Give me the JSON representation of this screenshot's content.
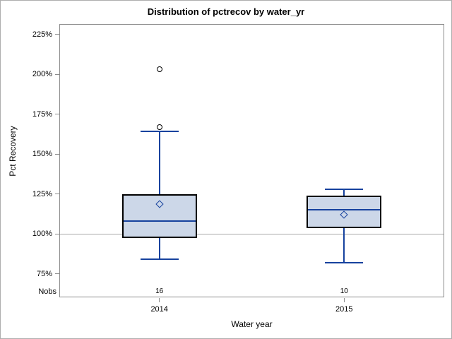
{
  "chart_data": {
    "type": "boxplot",
    "title": "Distribution of pctrecov by water_yr",
    "xlabel": "Water year",
    "ylabel": "Pct Recovery",
    "nobs_label": "Nobs",
    "y_ticks": [
      {
        "value": 225,
        "label": "225%"
      },
      {
        "value": 200,
        "label": "200%"
      },
      {
        "value": 175,
        "label": "175%"
      },
      {
        "value": 150,
        "label": "150%"
      },
      {
        "value": 125,
        "label": "125%"
      },
      {
        "value": 100,
        "label": "100%"
      },
      {
        "value": 75,
        "label": "75%"
      }
    ],
    "ylim": [
      60,
      231
    ],
    "reference_line": 100,
    "grid": false,
    "legend": "none",
    "groups": [
      {
        "category": "2014",
        "nobs": "16",
        "whisker_low": 84,
        "q1": 97.5,
        "median": 108,
        "q3": 125,
        "whisker_high": 164,
        "mean": 118.5,
        "outliers": [
          167,
          203
        ]
      },
      {
        "category": "2015",
        "nobs": "10",
        "whisker_low": 82,
        "q1": 103.5,
        "median": 115,
        "q3": 124,
        "whisker_high": 128,
        "mean": 112,
        "outliers": []
      }
    ]
  },
  "colors": {
    "box_fill": "#ccd7e8",
    "box_border": "#000000",
    "line_blue": "#16429e",
    "frame_gray": "#8c8c8c",
    "ref_line_gray": "#a8a8a8",
    "outlier_stroke": "#000000"
  }
}
